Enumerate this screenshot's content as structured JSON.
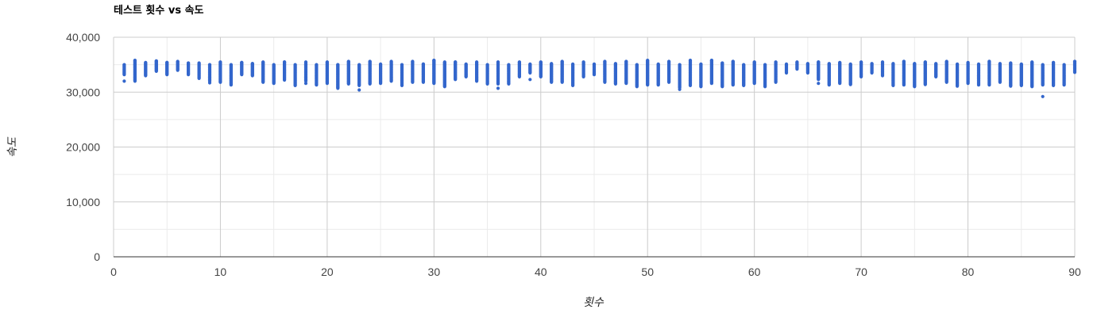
{
  "chart_data": {
    "type": "scatter",
    "title": "테스트 횟수 vs 속도",
    "xlabel": "횟수",
    "ylabel": "속도",
    "xlim": [
      0,
      90
    ],
    "ylim": [
      0,
      40000
    ],
    "x_ticks": [
      0,
      10,
      20,
      30,
      40,
      50,
      60,
      70,
      80,
      90
    ],
    "x_tick_labels": [
      "0",
      "10",
      "20",
      "30",
      "40",
      "50",
      "60",
      "70",
      "80",
      "90"
    ],
    "y_ticks": [
      0,
      10000,
      20000,
      30000,
      40000
    ],
    "y_tick_labels": [
      "0",
      "10,000",
      "20,000",
      "30,000",
      "40,000"
    ],
    "grid": true,
    "legend": "none",
    "point_color": "#3366cc",
    "series": [
      {
        "columns": [
          {
            "x": 1,
            "ymin": 33200,
            "ymax": 35000,
            "outliers": [
              32000
            ]
          },
          {
            "x": 2,
            "ymin": 32000,
            "ymax": 35800,
            "outliers": []
          },
          {
            "x": 3,
            "ymin": 33000,
            "ymax": 35400,
            "outliers": []
          },
          {
            "x": 4,
            "ymin": 33800,
            "ymax": 35700,
            "outliers": []
          },
          {
            "x": 5,
            "ymin": 33200,
            "ymax": 35400,
            "outliers": []
          },
          {
            "x": 6,
            "ymin": 34000,
            "ymax": 35600,
            "outliers": []
          },
          {
            "x": 7,
            "ymin": 33200,
            "ymax": 35300,
            "outliers": []
          },
          {
            "x": 8,
            "ymin": 32500,
            "ymax": 35300,
            "outliers": []
          },
          {
            "x": 9,
            "ymin": 32000,
            "ymax": 35000,
            "outliers": [
              31700
            ]
          },
          {
            "x": 10,
            "ymin": 31800,
            "ymax": 35500,
            "outliers": []
          },
          {
            "x": 11,
            "ymin": 31300,
            "ymax": 35000,
            "outliers": []
          },
          {
            "x": 12,
            "ymin": 33200,
            "ymax": 35400,
            "outliers": []
          },
          {
            "x": 13,
            "ymin": 33000,
            "ymax": 35200,
            "outliers": []
          },
          {
            "x": 14,
            "ymin": 31800,
            "ymax": 35500,
            "outliers": []
          },
          {
            "x": 15,
            "ymin": 31600,
            "ymax": 35000,
            "outliers": []
          },
          {
            "x": 16,
            "ymin": 32200,
            "ymax": 35500,
            "outliers": []
          },
          {
            "x": 17,
            "ymin": 31200,
            "ymax": 35000,
            "outliers": []
          },
          {
            "x": 18,
            "ymin": 32000,
            "ymax": 35500,
            "outliers": [
              31600
            ]
          },
          {
            "x": 19,
            "ymin": 31300,
            "ymax": 35000,
            "outliers": []
          },
          {
            "x": 20,
            "ymin": 31600,
            "ymax": 35500,
            "outliers": []
          },
          {
            "x": 21,
            "ymin": 30700,
            "ymax": 35000,
            "outliers": []
          },
          {
            "x": 22,
            "ymin": 31500,
            "ymax": 35600,
            "outliers": []
          },
          {
            "x": 23,
            "ymin": 31200,
            "ymax": 35000,
            "outliers": [
              30400
            ]
          },
          {
            "x": 24,
            "ymin": 31500,
            "ymax": 35600,
            "outliers": []
          },
          {
            "x": 25,
            "ymin": 31600,
            "ymax": 35100,
            "outliers": []
          },
          {
            "x": 26,
            "ymin": 32000,
            "ymax": 35600,
            "outliers": []
          },
          {
            "x": 27,
            "ymin": 31200,
            "ymax": 35000,
            "outliers": []
          },
          {
            "x": 28,
            "ymin": 31800,
            "ymax": 35600,
            "outliers": []
          },
          {
            "x": 29,
            "ymin": 31800,
            "ymax": 35100,
            "outliers": []
          },
          {
            "x": 30,
            "ymin": 31600,
            "ymax": 35800,
            "outliers": []
          },
          {
            "x": 31,
            "ymin": 31000,
            "ymax": 35500,
            "outliers": []
          },
          {
            "x": 32,
            "ymin": 32300,
            "ymax": 35500,
            "outliers": []
          },
          {
            "x": 33,
            "ymin": 32800,
            "ymax": 35100,
            "outliers": []
          },
          {
            "x": 34,
            "ymin": 32000,
            "ymax": 35500,
            "outliers": []
          },
          {
            "x": 35,
            "ymin": 31500,
            "ymax": 35000,
            "outliers": []
          },
          {
            "x": 36,
            "ymin": 31500,
            "ymax": 35500,
            "outliers": [
              30700
            ]
          },
          {
            "x": 37,
            "ymin": 31500,
            "ymax": 35000,
            "outliers": []
          },
          {
            "x": 38,
            "ymin": 32800,
            "ymax": 35500,
            "outliers": []
          },
          {
            "x": 39,
            "ymin": 33500,
            "ymax": 35100,
            "outliers": [
              32300
            ]
          },
          {
            "x": 40,
            "ymin": 32800,
            "ymax": 35500,
            "outliers": []
          },
          {
            "x": 41,
            "ymin": 31800,
            "ymax": 35200,
            "outliers": []
          },
          {
            "x": 42,
            "ymin": 31800,
            "ymax": 35600,
            "outliers": []
          },
          {
            "x": 43,
            "ymin": 31200,
            "ymax": 35100,
            "outliers": []
          },
          {
            "x": 44,
            "ymin": 32800,
            "ymax": 35500,
            "outliers": []
          },
          {
            "x": 45,
            "ymin": 33200,
            "ymax": 35100,
            "outliers": []
          },
          {
            "x": 46,
            "ymin": 31800,
            "ymax": 35600,
            "outliers": []
          },
          {
            "x": 47,
            "ymin": 31500,
            "ymax": 35200,
            "outliers": []
          },
          {
            "x": 48,
            "ymin": 31600,
            "ymax": 35600,
            "outliers": []
          },
          {
            "x": 49,
            "ymin": 31000,
            "ymax": 35000,
            "outliers": []
          },
          {
            "x": 50,
            "ymin": 31300,
            "ymax": 35800,
            "outliers": []
          },
          {
            "x": 51,
            "ymin": 31300,
            "ymax": 35100,
            "outliers": []
          },
          {
            "x": 52,
            "ymin": 31800,
            "ymax": 35600,
            "outliers": []
          },
          {
            "x": 53,
            "ymin": 30800,
            "ymax": 35000,
            "outliers": [
              30500
            ]
          },
          {
            "x": 54,
            "ymin": 31200,
            "ymax": 35800,
            "outliers": []
          },
          {
            "x": 55,
            "ymin": 31000,
            "ymax": 35100,
            "outliers": []
          },
          {
            "x": 56,
            "ymin": 31600,
            "ymax": 35800,
            "outliers": []
          },
          {
            "x": 57,
            "ymin": 31000,
            "ymax": 35300,
            "outliers": []
          },
          {
            "x": 58,
            "ymin": 31300,
            "ymax": 35600,
            "outliers": []
          },
          {
            "x": 59,
            "ymin": 31200,
            "ymax": 35000,
            "outliers": []
          },
          {
            "x": 60,
            "ymin": 31600,
            "ymax": 35500,
            "outliers": []
          },
          {
            "x": 61,
            "ymin": 31000,
            "ymax": 35000,
            "outliers": []
          },
          {
            "x": 62,
            "ymin": 31800,
            "ymax": 35500,
            "outliers": []
          },
          {
            "x": 63,
            "ymin": 33500,
            "ymax": 35100,
            "outliers": []
          },
          {
            "x": 64,
            "ymin": 34200,
            "ymax": 35500,
            "outliers": []
          },
          {
            "x": 65,
            "ymin": 33500,
            "ymax": 35200,
            "outliers": []
          },
          {
            "x": 66,
            "ymin": 32300,
            "ymax": 35500,
            "outliers": [
              31600
            ]
          },
          {
            "x": 67,
            "ymin": 31300,
            "ymax": 35200,
            "outliers": []
          },
          {
            "x": 68,
            "ymin": 31600,
            "ymax": 35400,
            "outliers": []
          },
          {
            "x": 69,
            "ymin": 31400,
            "ymax": 35100,
            "outliers": []
          },
          {
            "x": 70,
            "ymin": 32800,
            "ymax": 35500,
            "outliers": []
          },
          {
            "x": 71,
            "ymin": 33500,
            "ymax": 35200,
            "outliers": []
          },
          {
            "x": 72,
            "ymin": 33000,
            "ymax": 35500,
            "outliers": []
          },
          {
            "x": 73,
            "ymin": 31200,
            "ymax": 35200,
            "outliers": []
          },
          {
            "x": 74,
            "ymin": 31300,
            "ymax": 35600,
            "outliers": []
          },
          {
            "x": 75,
            "ymin": 31000,
            "ymax": 35200,
            "outliers": []
          },
          {
            "x": 76,
            "ymin": 31400,
            "ymax": 35500,
            "outliers": []
          },
          {
            "x": 77,
            "ymin": 32800,
            "ymax": 35200,
            "outliers": []
          },
          {
            "x": 78,
            "ymin": 31800,
            "ymax": 35600,
            "outliers": []
          },
          {
            "x": 79,
            "ymin": 31100,
            "ymax": 35100,
            "outliers": []
          },
          {
            "x": 80,
            "ymin": 31600,
            "ymax": 35400,
            "outliers": []
          },
          {
            "x": 81,
            "ymin": 31300,
            "ymax": 35100,
            "outliers": []
          },
          {
            "x": 82,
            "ymin": 31300,
            "ymax": 35600,
            "outliers": []
          },
          {
            "x": 83,
            "ymin": 31800,
            "ymax": 35200,
            "outliers": []
          },
          {
            "x": 84,
            "ymin": 31100,
            "ymax": 35300,
            "outliers": []
          },
          {
            "x": 85,
            "ymin": 31200,
            "ymax": 35100,
            "outliers": []
          },
          {
            "x": 86,
            "ymin": 31000,
            "ymax": 35500,
            "outliers": []
          },
          {
            "x": 87,
            "ymin": 31300,
            "ymax": 35000,
            "outliers": [
              29200
            ]
          },
          {
            "x": 88,
            "ymin": 31200,
            "ymax": 35400,
            "outliers": []
          },
          {
            "x": 89,
            "ymin": 31300,
            "ymax": 35000,
            "outliers": []
          },
          {
            "x": 90,
            "ymin": 33600,
            "ymax": 35600,
            "outliers": []
          }
        ]
      }
    ]
  }
}
